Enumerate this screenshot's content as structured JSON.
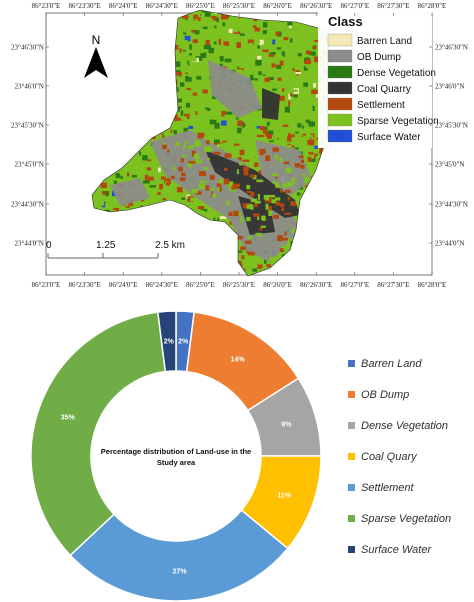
{
  "map": {
    "north_label": "N",
    "legend_title": "Class",
    "classes": [
      {
        "label": "Barren Land",
        "color": "#f4e8b9"
      },
      {
        "label": "OB Dump",
        "color": "#8c8c8c"
      },
      {
        "label": "Dense Vegetation",
        "color": "#2a7a14"
      },
      {
        "label": "Coal Quarry",
        "color": "#333333"
      },
      {
        "label": "Settlement",
        "color": "#b3470e"
      },
      {
        "label": "Sparse Vegetation",
        "color": "#7cc11f"
      },
      {
        "label": "Surface Water",
        "color": "#1f4fd6"
      }
    ],
    "scale_labels": [
      "0",
      "1.25",
      "2.5 km"
    ],
    "top_ticks": [
      "86°23'0\"E",
      "86°23'30\"E",
      "86°24'0\"E",
      "86°24'30\"E",
      "86°25'0\"E",
      "86°25'30\"E",
      "86°26'0\"E",
      "86°26'30\"E",
      "86°27'0\"E",
      "86°27'30\"E",
      "86°28'0\"E"
    ],
    "bottom_ticks": [
      "86°23'0\"E",
      "86°23'30\"E",
      "86°24'0\"E",
      "86°24'30\"E",
      "86°25'0\"E",
      "86°25'30\"E",
      "86°26'0\"E",
      "86°26'30\"E",
      "86°27'0\"E",
      "86°27'30\"E",
      "86°28'0\"E"
    ],
    "left_ticks": [
      "23°46'30\"N",
      "23°46'0\"N",
      "23°45'30\"N",
      "23°45'0\"N",
      "23°44'30\"N",
      "23°44'0\"N"
    ],
    "right_ticks": [
      "23°46'30\"N",
      "23°46'0\"N",
      "23°45'30\"N",
      "23°45'0\"N",
      "23°44'30\"N",
      "23°44'0\"N"
    ]
  },
  "chart_data": {
    "type": "pie",
    "center_title": "Percentage distribution of Land-use in the Study area",
    "series": [
      {
        "name": "Barren Land",
        "value": 2,
        "label": "2%",
        "color": "#4472c4"
      },
      {
        "name": "OB Dump",
        "value": 14,
        "label": "14%",
        "color": "#ed7d31"
      },
      {
        "name": "Dense Vegetation",
        "value": 9,
        "label": "9%",
        "color": "#a5a5a5"
      },
      {
        "name": "Coal Quary",
        "value": 11,
        "label": "11%",
        "color": "#ffc000"
      },
      {
        "name": "Settlement",
        "value": 27,
        "label": "27%",
        "color": "#5b9bd5"
      },
      {
        "name": "Sparse Vegetation",
        "value": 35,
        "label": "35%",
        "color": "#70ad47"
      },
      {
        "name": "Surface Water",
        "value": 2,
        "label": "2%",
        "color": "#264478"
      }
    ]
  }
}
